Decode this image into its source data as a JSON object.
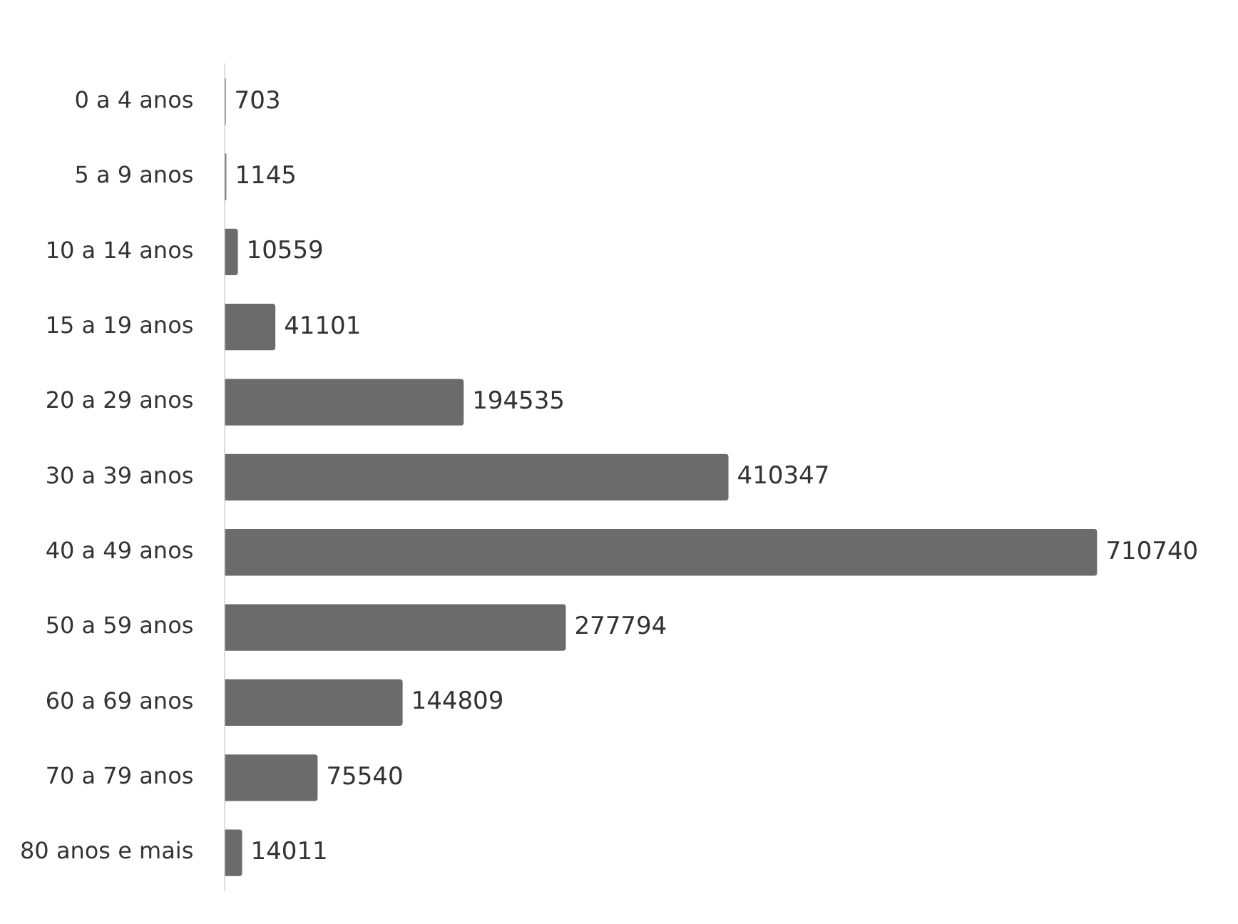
{
  "chart_data": {
    "type": "bar",
    "orientation": "horizontal",
    "categories": [
      "0 a 4 anos",
      "5 a 9 anos",
      "10 a 14 anos",
      "15 a 19 anos",
      "20 a 29 anos",
      "30 a 39 anos",
      "40 a 49 anos",
      "50 a 59 anos",
      "60 a 69 anos",
      "70 a 79 anos",
      "80 anos e mais"
    ],
    "values": [
      703,
      1145,
      10559,
      41101,
      194535,
      410347,
      710740,
      277794,
      144809,
      75540,
      14011
    ],
    "color": "#6b6b6b",
    "data_labels": true,
    "legend": false
  }
}
